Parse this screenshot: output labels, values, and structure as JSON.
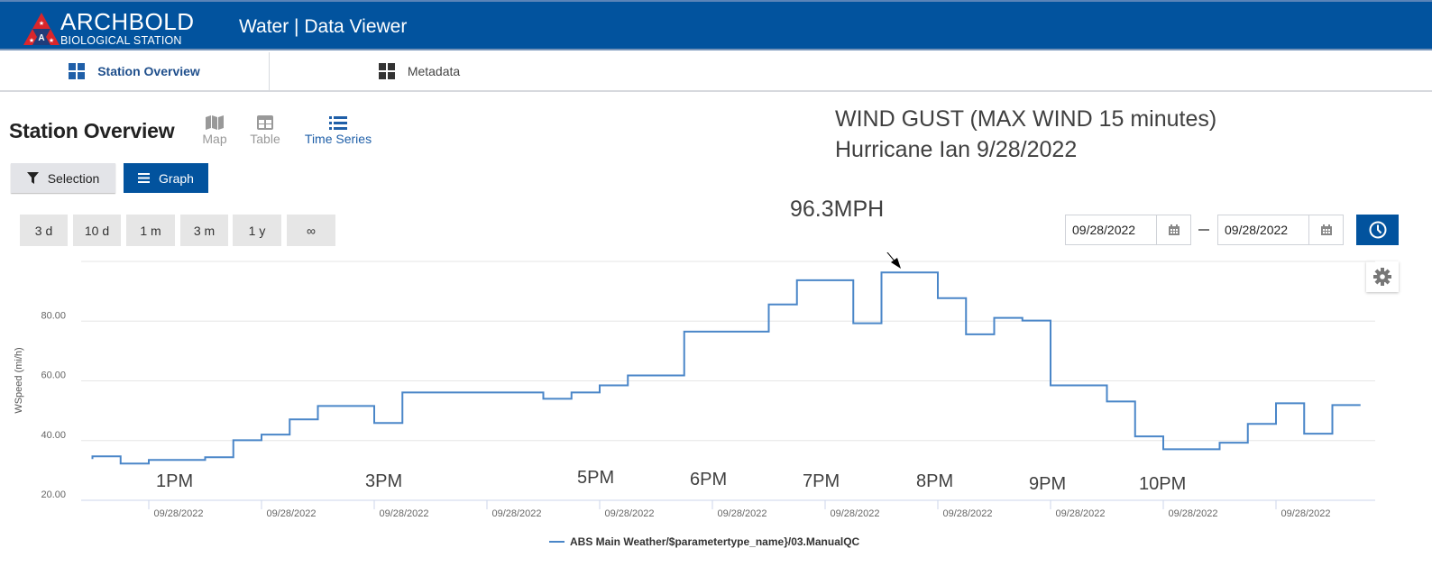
{
  "header": {
    "logo_word": "ARCHBOLD",
    "logo_sub": "BIOLOGICAL STATION",
    "app_title": "Water | Data Viewer",
    "bg_color": "#02539e"
  },
  "tabs": [
    {
      "label": "Station Overview",
      "icon": "grid-icon",
      "active": true
    },
    {
      "label": "Metadata",
      "icon": "grid-icon",
      "active": false
    }
  ],
  "page": {
    "title": "Station Overview",
    "views": [
      {
        "label": "Map",
        "icon": "map-icon",
        "active": false
      },
      {
        "label": "Table",
        "icon": "table-icon",
        "active": false
      },
      {
        "label": "Time Series",
        "icon": "list-icon",
        "active": true
      }
    ],
    "buttons": {
      "selection": "Selection",
      "graph": "Graph"
    },
    "ranges": [
      "3 d",
      "10 d",
      "1 m",
      "3 m",
      "1 y",
      "∞"
    ],
    "date_from": "09/28/2022",
    "date_to": "09/28/2022"
  },
  "annotations": {
    "title_line1": "WIND GUST (MAX WIND 15 minutes)",
    "title_line2": "Hurricane Ian 9/28/2022",
    "peak_label": "96.3MPH",
    "hour_labels": [
      "1PM",
      "3PM",
      "5PM",
      "6PM",
      "7PM",
      "8PM",
      "9PM",
      "10PM"
    ]
  },
  "chart_data": {
    "type": "line",
    "step": true,
    "title": "",
    "xlabel": "",
    "ylabel": "WSpeed (mi/h)",
    "ylim": [
      20,
      100
    ],
    "yticks": [
      "20.00",
      "40.00",
      "60.00",
      "80.00"
    ],
    "xtick_labels": [
      "09/28/2022",
      "09/28/2022",
      "09/28/2022",
      "09/28/2022",
      "09/28/2022",
      "09/28/2022",
      "09/28/2022",
      "09/28/2022",
      "09/28/2022",
      "09/28/2022",
      "09/28/2022"
    ],
    "grid": true,
    "legend_position": "bottom",
    "series": [
      {
        "name": "ABS Main Weather/$parametertype_name}/03.ManualQC",
        "color": "#4a86c8",
        "x": [
          "12:30",
          "12:45",
          "13:00",
          "13:30",
          "13:45",
          "14:00",
          "14:15",
          "14:30",
          "15:00",
          "15:15",
          "16:30",
          "16:45",
          "17:00",
          "17:15",
          "17:45",
          "18:30",
          "18:45",
          "19:15",
          "19:30",
          "20:00",
          "20:15",
          "20:30",
          "20:45",
          "21:00",
          "21:30",
          "21:45",
          "22:00",
          "22:30",
          "22:45",
          "23:00",
          "23:15",
          "23:30"
        ],
        "values": [
          34.7,
          32.3,
          33.5,
          34.4,
          40.1,
          42.0,
          47.1,
          51.6,
          45.9,
          56.1,
          54.0,
          56.1,
          58.5,
          61.8,
          76.5,
          85.6,
          93.7,
          79.3,
          96.3,
          87.7,
          75.6,
          81.1,
          80.2,
          58.5,
          53.1,
          41.4,
          37.1,
          39.3,
          45.6,
          52.5,
          42.3,
          51.9
        ]
      }
    ]
  }
}
